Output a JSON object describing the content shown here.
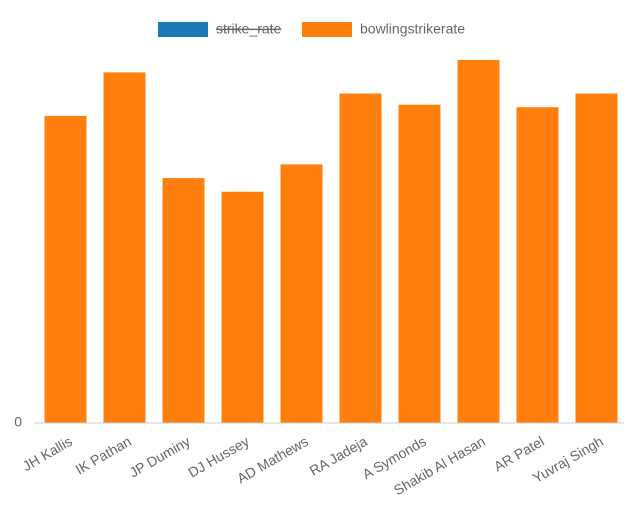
{
  "chart_data": {
    "type": "bar",
    "categories": [
      "JH Kallis",
      "IK Pathan",
      "JP Duminy",
      "DJ Hussey",
      "AD Mathews",
      "RA Jadeja",
      "A Symonds",
      "Shakib Al Hasan",
      "AR Patel",
      "Yuvraj Singh"
    ],
    "series": [
      {
        "name": "strike_rate",
        "color": "#1f77b4",
        "hidden": true,
        "values": [
          null,
          null,
          null,
          null,
          null,
          null,
          null,
          null,
          null,
          null
        ]
      },
      {
        "name": "bowlingstrikerate",
        "color": "#ff7f0e",
        "values": [
          24.7,
          28.2,
          19.7,
          18.6,
          20.8,
          26.5,
          25.6,
          29.2,
          25.4,
          26.5
        ]
      }
    ],
    "ylim": [
      0,
      30
    ],
    "yticks": [
      0
    ],
    "grid": false
  }
}
